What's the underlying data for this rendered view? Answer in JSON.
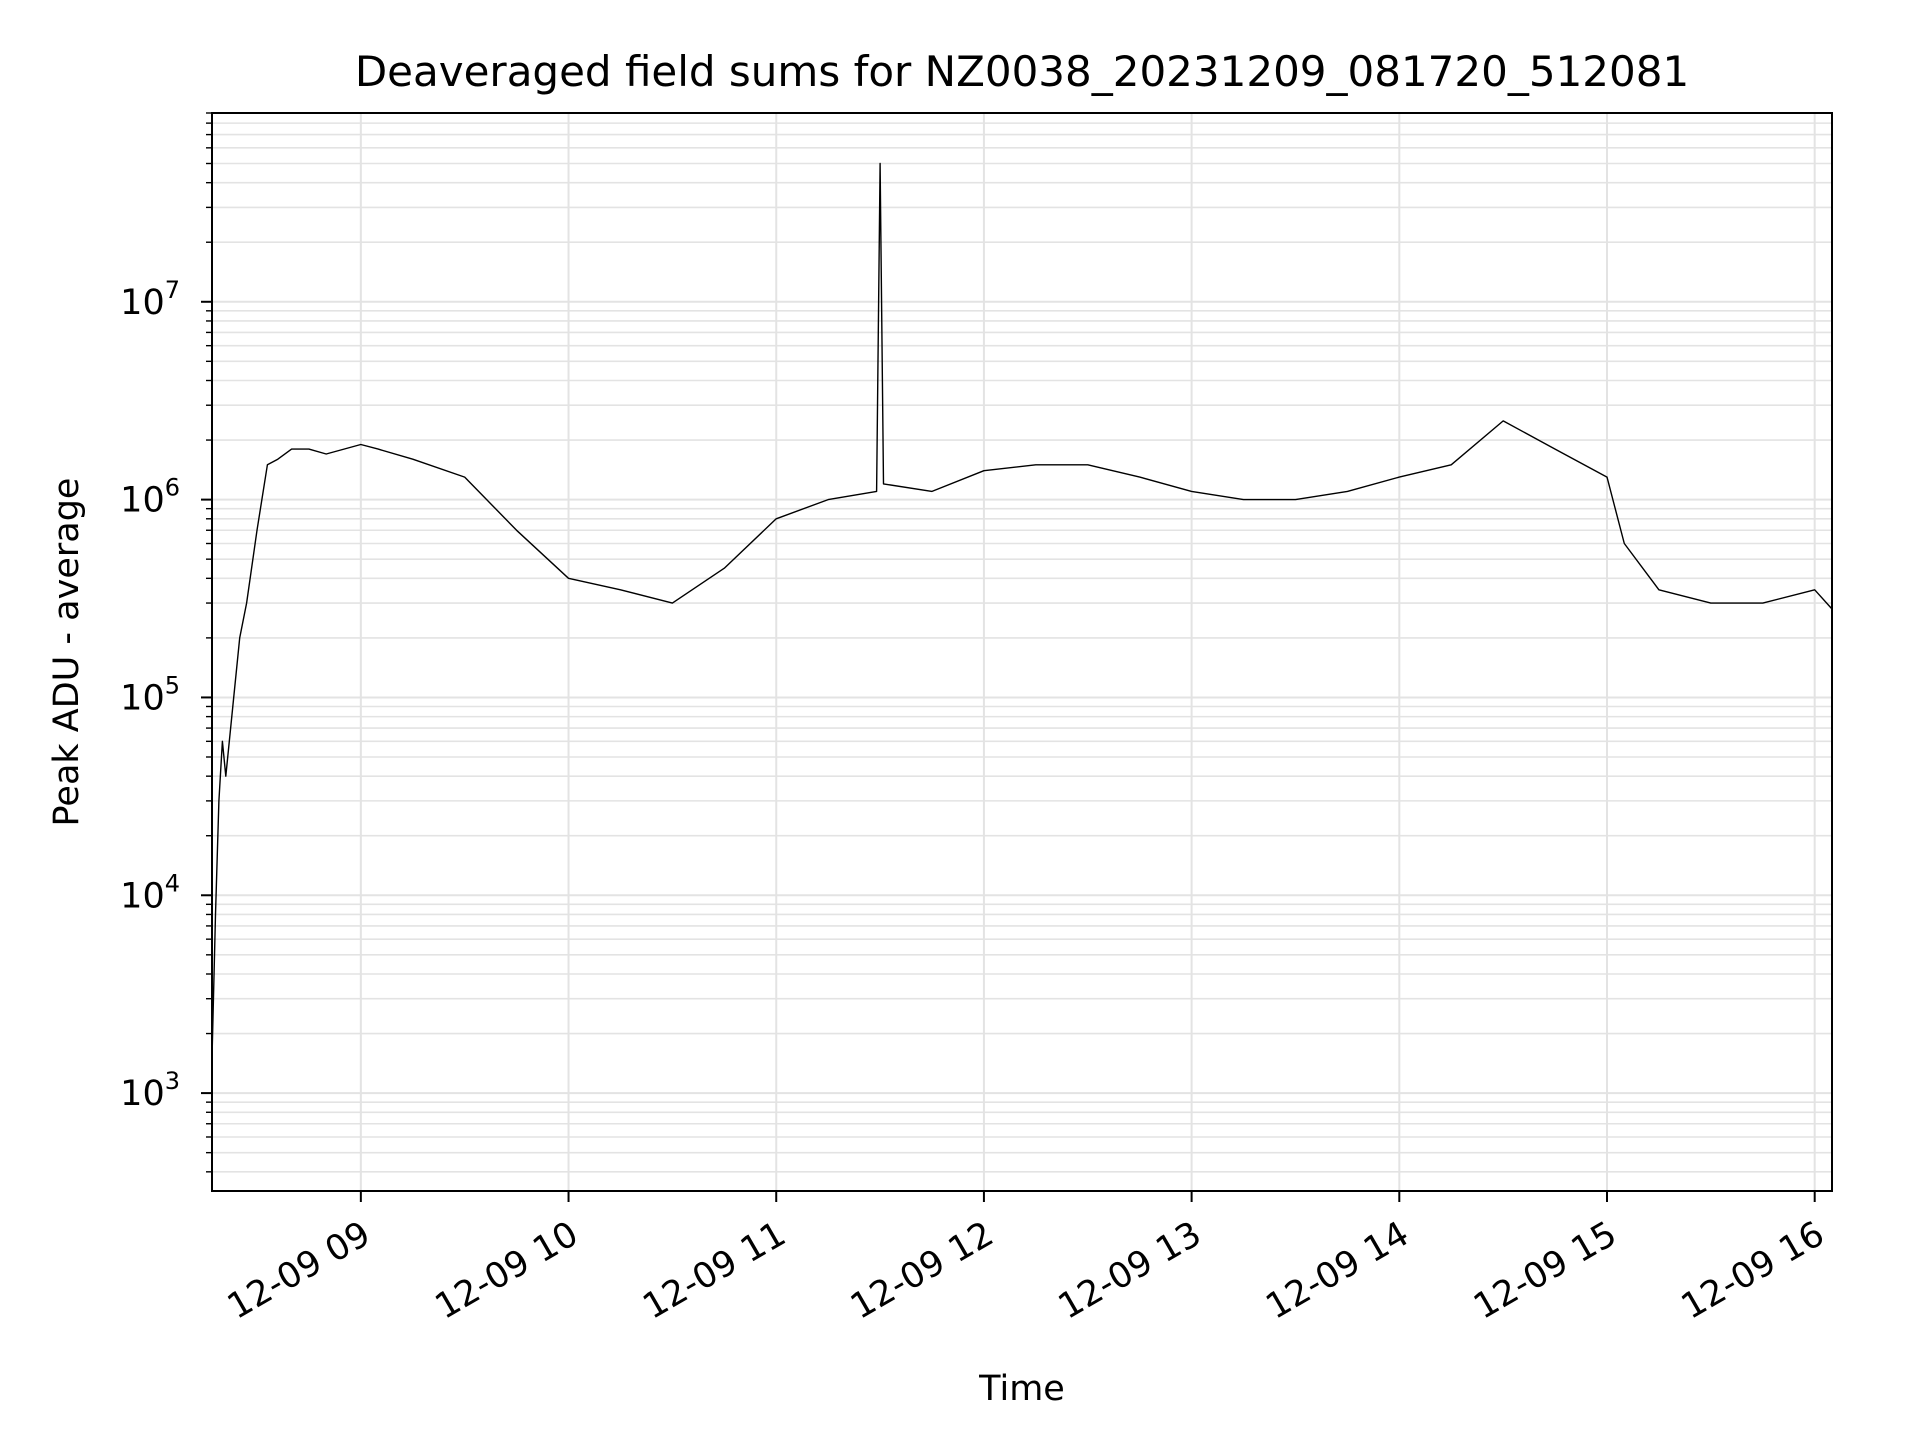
{
  "chart_data": {
    "type": "line",
    "title": "Deaveraged field sums for NZ0038_20231209_081720_512081",
    "xlabel": "Time",
    "ylabel": "Peak ADU - average",
    "xscale": "time",
    "yscale": "log",
    "xlim": [
      "12-09 08:17",
      "12-09 16:05"
    ],
    "ylim": [
      320,
      90000000
    ],
    "x_tick_labels": [
      "12-09 09",
      "12-09 10",
      "12-09 11",
      "12-09 12",
      "12-09 13",
      "12-09 14",
      "12-09 15",
      "12-09 16"
    ],
    "y_ticks": [
      {
        "base": "10",
        "exp": "3",
        "value": 1000
      },
      {
        "base": "10",
        "exp": "4",
        "value": 10000
      },
      {
        "base": "10",
        "exp": "5",
        "value": 100000
      },
      {
        "base": "10",
        "exp": "6",
        "value": 1000000
      },
      {
        "base": "10",
        "exp": "7",
        "value": 10000000
      }
    ],
    "grid": "major and minor",
    "line_color": "#000000",
    "grid_color": "#e3e3e3",
    "series": [
      {
        "x": [
          "12-09 08:17",
          "12-09 08:18",
          "12-09 08:19",
          "12-09 08:20",
          "12-09 08:21",
          "12-09 08:23",
          "12-09 08:25",
          "12-09 08:27",
          "12-09 08:30",
          "12-09 08:33",
          "12-09 08:36",
          "12-09 08:40",
          "12-09 08:45",
          "12-09 08:50",
          "12-09 09:00",
          "12-09 09:05",
          "12-09 09:15",
          "12-09 09:30",
          "12-09 09:45",
          "12-09 10:00",
          "12-09 10:15",
          "12-09 10:30",
          "12-09 10:45",
          "12-09 11:00",
          "12-09 11:15",
          "12-09 11:29",
          "12-09 11:30",
          "12-09 11:31",
          "12-09 11:45",
          "12-09 12:00",
          "12-09 12:15",
          "12-09 12:30",
          "12-09 12:45",
          "12-09 13:00",
          "12-09 13:15",
          "12-09 13:30",
          "12-09 13:45",
          "12-09 14:00",
          "12-09 14:15",
          "12-09 14:30",
          "12-09 14:45",
          "12-09 15:00",
          "12-09 15:05",
          "12-09 15:15",
          "12-09 15:30",
          "12-09 15:45",
          "12-09 16:00",
          "12-09 16:05"
        ],
        "y": [
          1500,
          8000,
          30000,
          60000,
          40000,
          90000,
          200000,
          300000,
          700000,
          1500000,
          1600000,
          1800000,
          1800000,
          1700000,
          1900000,
          1800000,
          1600000,
          1300000,
          700000,
          400000,
          350000,
          300000,
          450000,
          800000,
          1000000,
          1100000,
          50000000,
          1200000,
          1100000,
          1400000,
          1500000,
          1500000,
          1300000,
          1100000,
          1000000,
          1000000,
          1100000,
          1300000,
          1500000,
          2500000,
          1800000,
          1300000,
          600000,
          350000,
          300000,
          300000,
          350000,
          280000
        ]
      }
    ]
  }
}
